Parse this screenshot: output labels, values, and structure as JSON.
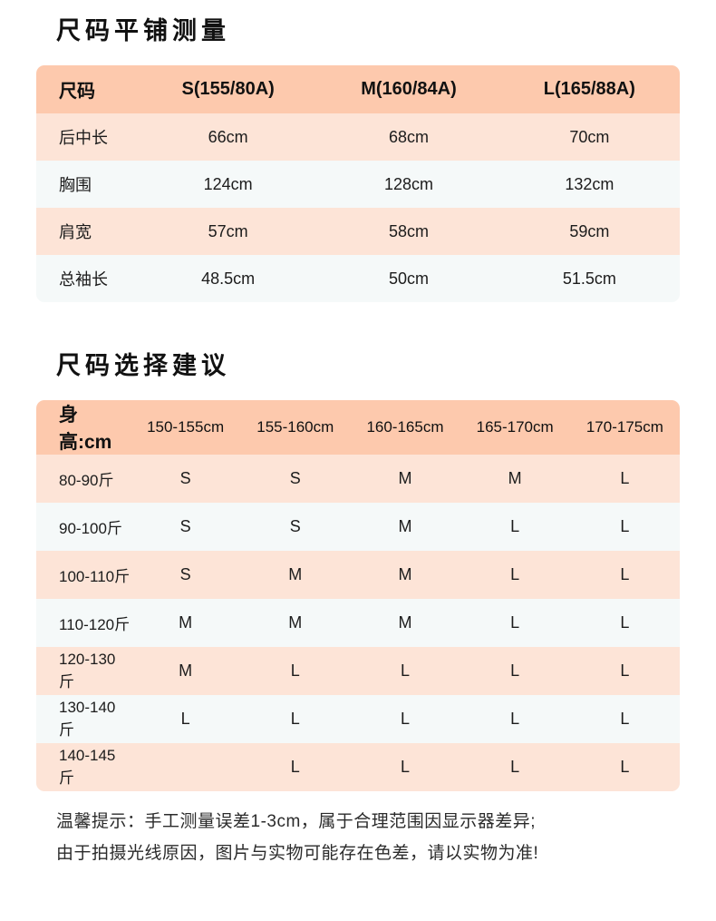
{
  "colors": {
    "table_header_bg": "#fdc9ad",
    "row_peach_bg": "#fde4d7",
    "row_light_bg": "#f5f9f9",
    "page_bg": "#ffffff",
    "text": "#111111"
  },
  "section_measurements": {
    "title": "尺码平铺测量",
    "table": {
      "columns": [
        "尺码",
        "S(155/80A)",
        "M(160/84A)",
        "L(165/88A)"
      ],
      "rows": [
        {
          "label": "后中长",
          "values": [
            "66cm",
            "68cm",
            "70cm"
          ]
        },
        {
          "label": "胸围",
          "values": [
            "124cm",
            "128cm",
            "132cm"
          ]
        },
        {
          "label": "肩宽",
          "values": [
            "57cm",
            "58cm",
            "59cm"
          ]
        },
        {
          "label": "总袖长",
          "values": [
            "48.5cm",
            "50cm",
            "51.5cm"
          ]
        }
      ]
    }
  },
  "section_recommendations": {
    "title": "尺码选择建议",
    "table": {
      "columns": [
        "身高:cm",
        "150-155cm",
        "155-160cm",
        "160-165cm",
        "165-170cm",
        "170-175cm"
      ],
      "rows": [
        {
          "label": "80-90斤",
          "values": [
            "S",
            "S",
            "M",
            "M",
            "L"
          ]
        },
        {
          "label": "90-100斤",
          "values": [
            "S",
            "S",
            "M",
            "L",
            "L"
          ]
        },
        {
          "label": "100-110斤",
          "values": [
            "S",
            "M",
            "M",
            "L",
            "L"
          ]
        },
        {
          "label": "110-120斤",
          "values": [
            "M",
            "M",
            "M",
            "L",
            "L"
          ]
        },
        {
          "label": "120-130斤",
          "values": [
            "M",
            "L",
            "L",
            "L",
            "L"
          ]
        },
        {
          "label": "130-140斤",
          "values": [
            "L",
            "L",
            "L",
            "L",
            "L"
          ]
        },
        {
          "label": "140-145斤",
          "values": [
            "",
            "L",
            "L",
            "L",
            "L"
          ]
        }
      ]
    }
  },
  "footer": {
    "line1": "温馨提示：手工测量误差1-3cm，属于合理范围因显示器差异;",
    "line2": "由于拍摄光线原因，图片与实物可能存在色差，请以实物为准!"
  }
}
